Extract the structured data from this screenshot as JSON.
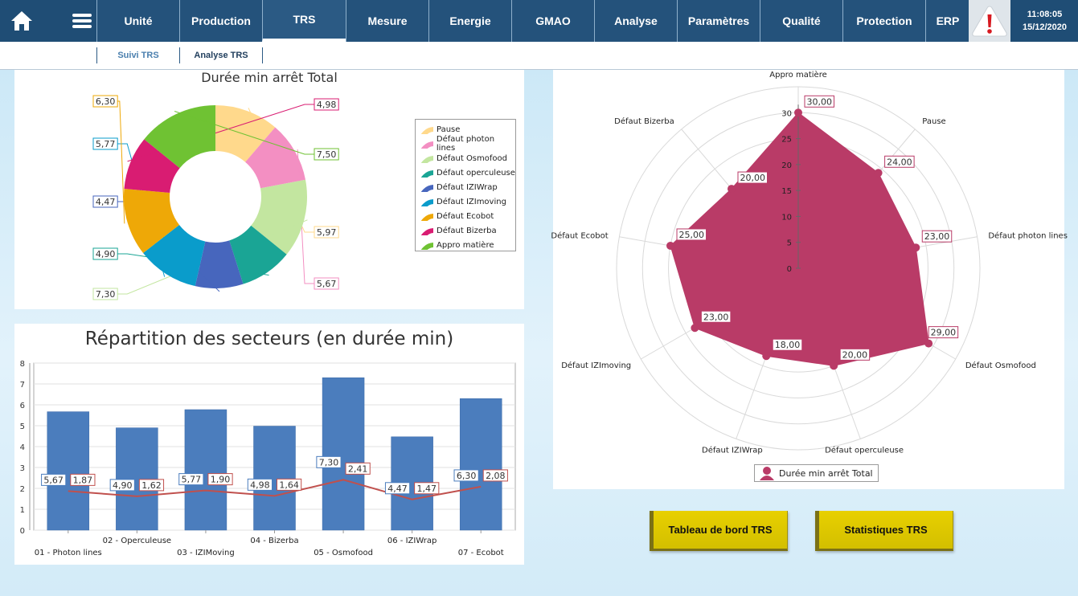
{
  "nav": {
    "tabs": [
      "Unité",
      "Production",
      "TRS",
      "Mesure",
      "Energie",
      "GMAO",
      "Analyse",
      "Paramètres",
      "Qualité",
      "Protection",
      "ERP"
    ],
    "active_tab": "TRS",
    "time": "11:08:05",
    "date": "15/12/2020"
  },
  "subnav": {
    "tabs": [
      "Suivi TRS",
      "Analyse TRS"
    ]
  },
  "colors": {
    "nav_bg": "#1f4d75",
    "accent": "#2b5a84",
    "alert": "#d71920",
    "button": "#e0cb00"
  },
  "buttons": {
    "dashboard": "Tableau de bord TRS",
    "stats": "Statistiques TRS"
  },
  "chart_data": [
    {
      "type": "pie",
      "variant": "donut",
      "title": "Durée min arrêt Total",
      "slices": [
        {
          "label": "Pause",
          "value": 5.97,
          "color": "#ffd98c"
        },
        {
          "label": "Défaut photon lines",
          "value": 5.67,
          "color": "#f38fc2"
        },
        {
          "label": "Défaut Osmofood",
          "value": 7.3,
          "color": "#c3e6a0"
        },
        {
          "label": "Défaut operculeuse",
          "value": 4.9,
          "color": "#1aa595"
        },
        {
          "label": "Défaut IZIWrap",
          "value": 4.47,
          "color": "#4766bd"
        },
        {
          "label": "Défaut IZImoving",
          "value": 5.77,
          "color": "#0a9ccb"
        },
        {
          "label": "Défaut Ecobot",
          "value": 6.3,
          "color": "#eea807"
        },
        {
          "label": "Défaut Bizerba",
          "value": 4.98,
          "color": "#d91c72"
        },
        {
          "label": "Appro matière",
          "value": 7.5,
          "color": "#6fc233"
        }
      ],
      "data_labels": [
        "5,97",
        "5,67",
        "7,30",
        "4,90",
        "4,47",
        "5,77",
        "6,30",
        "4,98",
        "7,50"
      ],
      "legend": "right"
    },
    {
      "type": "bar",
      "title": "Répartition des secteurs (en durée min)",
      "categories": [
        "01 - Photon lines",
        "02 - Operculeuse",
        "03 - IZIMoving",
        "04 - Bizerba",
        "05 - Osmofood",
        "06 - IZIWrap",
        "07 - Ecobot"
      ],
      "series": [
        {
          "type": "bar",
          "values": [
            5.67,
            4.9,
            5.77,
            4.98,
            7.3,
            4.47,
            6.3
          ],
          "labels": [
            "5,67",
            "4,90",
            "5,77",
            "4,98",
            "7,30",
            "4,47",
            "6,30"
          ],
          "color": "#4b7dbd"
        },
        {
          "type": "line",
          "values": [
            1.87,
            1.62,
            1.9,
            1.64,
            2.41,
            1.47,
            2.08
          ],
          "labels": [
            "1,87",
            "1,62",
            "1,90",
            "1,64",
            "2,41",
            "1,47",
            "2,08"
          ],
          "color": "#c0504d"
        }
      ],
      "yticks": [
        "0",
        "1",
        "2",
        "3",
        "4",
        "5",
        "6",
        "7",
        "8"
      ],
      "ylim": [
        0,
        8
      ],
      "grid": true
    },
    {
      "type": "radar",
      "axes": [
        "Appro matière",
        "Pause",
        "Défaut photon lines",
        "Défaut Osmofood",
        "Défaut operculeuse",
        "Défaut IZIWrap",
        "Défaut IZImoving",
        "Défaut Ecobot",
        "Défaut Bizerba"
      ],
      "series": [
        {
          "name": "Durée min arrêt Total",
          "values": [
            30,
            24,
            23,
            29,
            20,
            18,
            23,
            25,
            20
          ],
          "labels": [
            "30,00",
            "24,00",
            "23,00",
            "29,00",
            "20,00",
            "18,00",
            "23,00",
            "25,00",
            "20,00"
          ],
          "color": "#b93b67"
        }
      ],
      "rticks": [
        "0",
        "5",
        "10",
        "15",
        "20",
        "25",
        "30"
      ],
      "rlim": [
        0,
        35
      ],
      "legend": "bottom"
    }
  ]
}
